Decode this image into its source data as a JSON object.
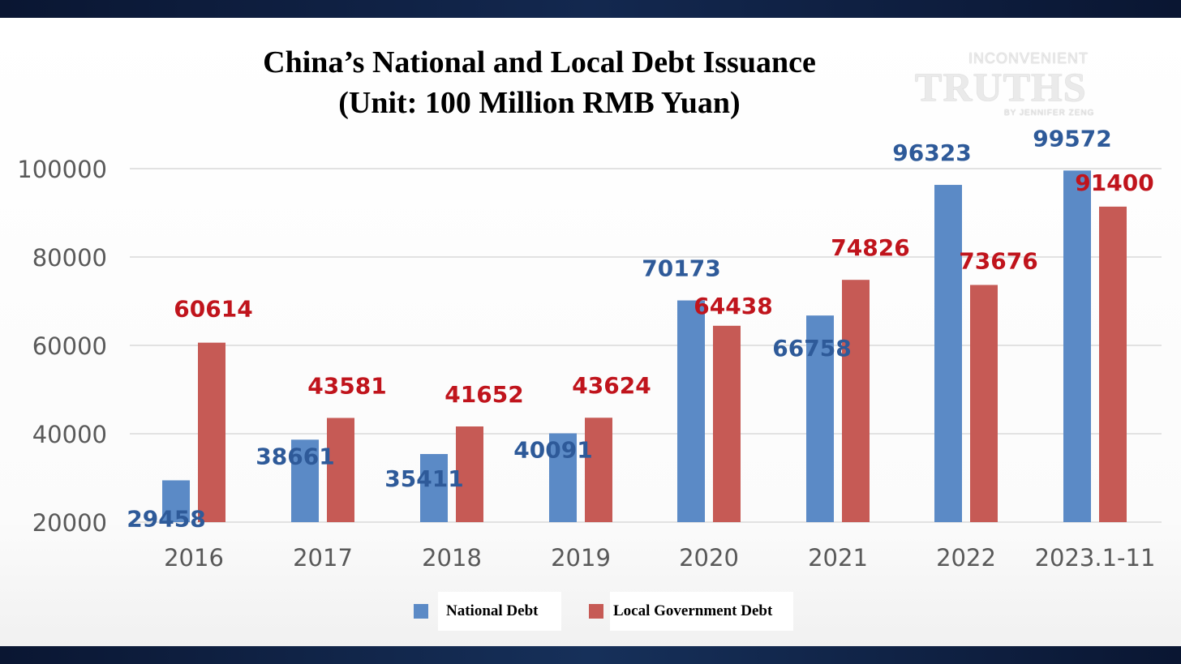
{
  "chart_data": {
    "type": "bar",
    "title_line1": "China’s National and Local Debt Issuance",
    "title_line2": "(Unit: 100 Million RMB Yuan)",
    "categories": [
      "2016",
      "2017",
      "2018",
      "2019",
      "2020",
      "2021",
      "2022",
      "2023.1-11"
    ],
    "series": [
      {
        "name": "National Debt",
        "color": "#5b8ac6",
        "label_color": "#2e5a99",
        "values": [
          29458,
          38661,
          35411,
          40091,
          70173,
          66758,
          96323,
          99572
        ]
      },
      {
        "name": "Local Government Debt",
        "color": "#c65a55",
        "label_color": "#c0141c",
        "values": [
          60614,
          43581,
          41652,
          43624,
          64438,
          74826,
          73676,
          91400
        ]
      }
    ],
    "y_ticks": [
      20000,
      40000,
      60000,
      80000,
      100000
    ],
    "ylim": [
      20000,
      100000
    ],
    "grid": true,
    "legend_position": "bottom",
    "tick_label_color": "#595959",
    "grid_color": "#d9d9d9"
  },
  "watermark": {
    "line1": "INCONVENIENT",
    "line2": "TRUTHS",
    "line3": "BY JENNIFER ZENG"
  }
}
